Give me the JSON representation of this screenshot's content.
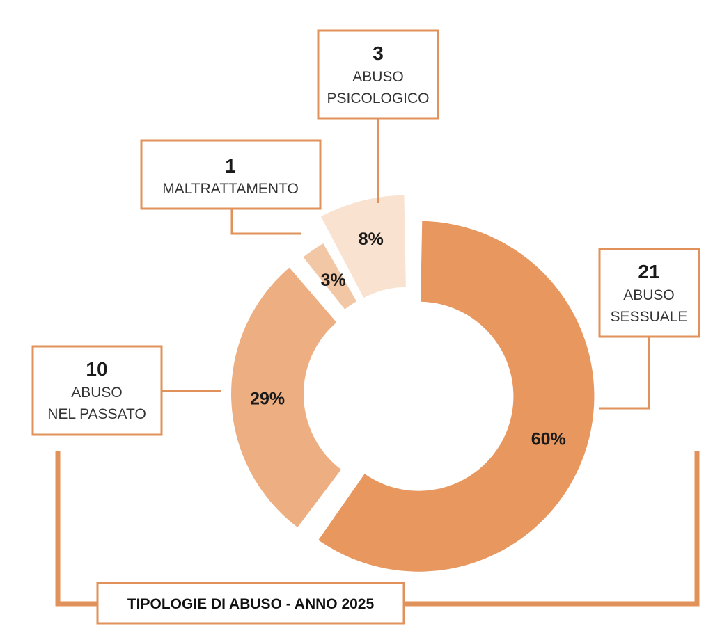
{
  "chart_data": {
    "type": "pie",
    "title": "TIPOLOGIE DI ABUSO - ANNO 2025",
    "slices": [
      {
        "key": "sessuale",
        "count": "21",
        "label_lines": [
          "ABUSO",
          "SESSUALE"
        ],
        "value": 60,
        "pct_label": "60%",
        "color": "#E8975E"
      },
      {
        "key": "passato",
        "count": "10",
        "label_lines": [
          "ABUSO",
          "NEL PASSATO"
        ],
        "value": 29,
        "pct_label": "29%",
        "color": "#EDAF82"
      },
      {
        "key": "maltrattamento",
        "count": "1",
        "label_lines": [
          "MALTRATTAMENTO"
        ],
        "value": 3,
        "pct_label": "3%",
        "color": "#F2C7A6"
      },
      {
        "key": "psicologico",
        "count": "3",
        "label_lines": [
          "ABUSO",
          "PSICOLOGICO"
        ],
        "value": 8,
        "pct_label": "8%",
        "color": "#F9E2CF"
      }
    ],
    "accent_color": "#E0925A"
  }
}
